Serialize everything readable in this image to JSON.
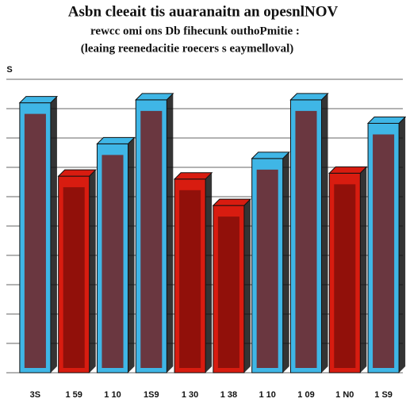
{
  "chart_data": {
    "type": "bar",
    "title": "Asbn cleeait tis auaranaitn an opesnlNOV",
    "subtitle": [
      "rewcc omi ons Db fihecunk outhoPmitie :",
      "(leaing reenedacitie roecers s eaymelloval)"
    ],
    "ylabel": "S",
    "categories": [
      "3S",
      "1 59",
      "1 10",
      "1S9",
      "1 30",
      "1 38",
      "1 10",
      "1 09",
      "1 N0",
      "1 S9"
    ],
    "values": [
      9.2,
      6.7,
      7.8,
      9.3,
      6.6,
      5.7,
      7.3,
      9.3,
      6.8,
      8.5
    ],
    "colors": [
      "#3fb6e6",
      "#d81c10",
      "#3fb6e6",
      "#3fb6e6",
      "#d81c10",
      "#d81c10",
      "#3fb6e6",
      "#3fb6e6",
      "#d81c10",
      "#3fb6e6"
    ],
    "ylim": [
      0,
      10
    ],
    "yticks": [
      0,
      1,
      2,
      3,
      4,
      5,
      6,
      7,
      8,
      9,
      10
    ],
    "grid": true
  }
}
